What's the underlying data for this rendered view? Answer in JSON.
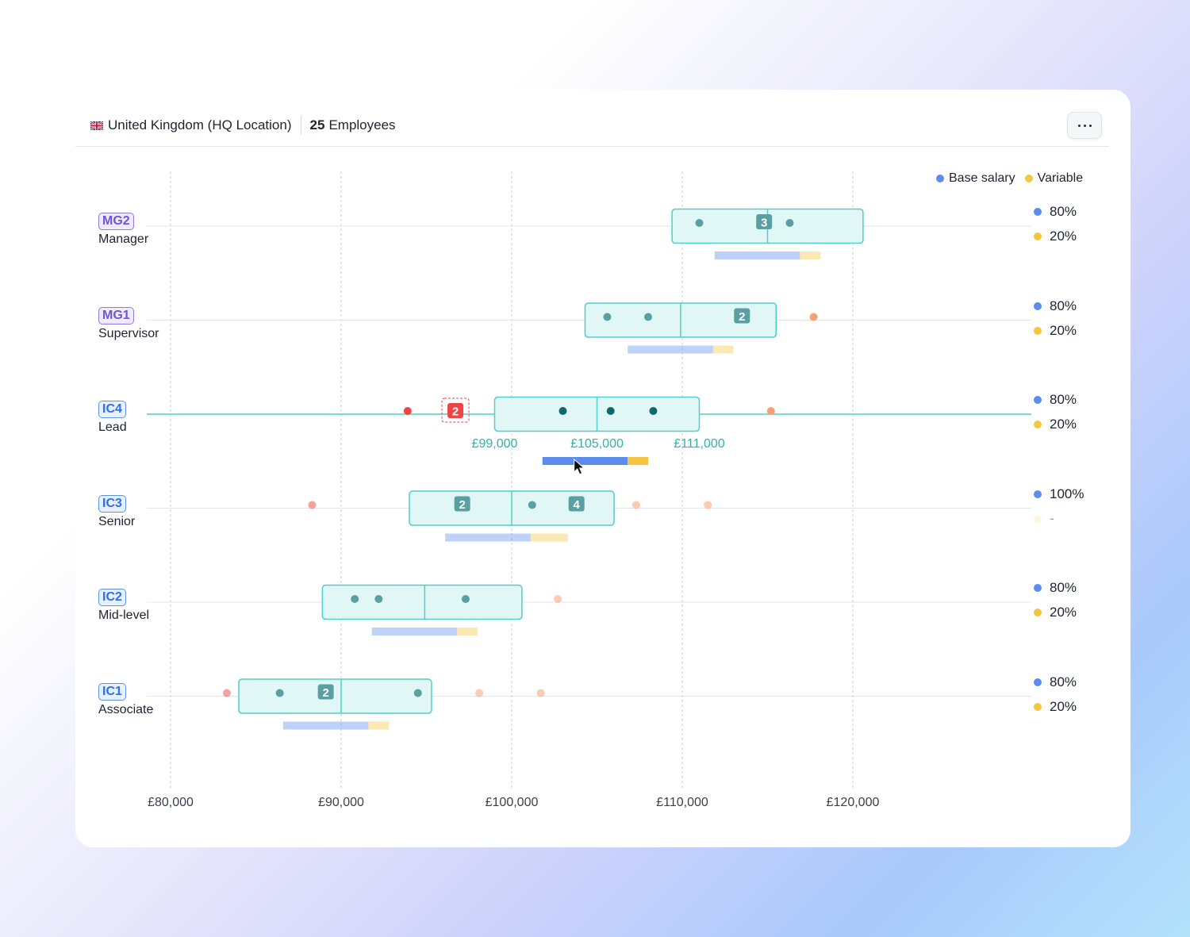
{
  "header": {
    "location": "United Kingdom (HQ Location)",
    "employee_count": "25",
    "employees_label": "Employees",
    "flag_icon": "uk-flag-icon",
    "more_icon": "more-dots-icon"
  },
  "legend": [
    {
      "label": "Base salary",
      "color": "#5b8def"
    },
    {
      "label": "Variable",
      "color": "#f5c542"
    }
  ],
  "colors": {
    "box_fill": "#e0f7f6",
    "box_stroke": "#4fcfc7",
    "dot": "#5a9fa3",
    "dot_active": "#0c6a6b",
    "outlier_red": "#ef4444",
    "outlier_orange": "#f7a172",
    "badge": "#5a9fa3",
    "base_bar": "#5b8def",
    "variable_bar": "#f5c542"
  },
  "chart_data": {
    "type": "box_range",
    "x_ticks": [
      "£80,000",
      "£90,000",
      "£100,000",
      "£110,000",
      "£120,000"
    ],
    "x_range": [
      78500,
      126000
    ],
    "bands": [
      {
        "code": "MG2",
        "name": "Manager",
        "kind": "mg",
        "min": 109400,
        "mid": 115000,
        "max": 120600,
        "dots": [
          111000,
          116300
        ],
        "badges": [
          {
            "value": 114800,
            "label": "3"
          }
        ],
        "outliers": [],
        "bar": {
          "start": 111900,
          "base_end": 116900,
          "var_end": 118100
        },
        "base_pct": "80%",
        "var_pct": "20%"
      },
      {
        "code": "MG1",
        "name": "Supervisor",
        "kind": "mg",
        "min": 104300,
        "mid": 109900,
        "max": 115500,
        "dots": [
          105600,
          108000
        ],
        "badges": [
          {
            "value": 113500,
            "label": "2"
          }
        ],
        "outliers": [
          {
            "value": 117700,
            "tone": "orange"
          }
        ],
        "bar": {
          "start": 106800,
          "base_end": 111800,
          "var_end": 113000
        },
        "base_pct": "80%",
        "var_pct": "20%"
      },
      {
        "code": "IC4",
        "name": "Lead",
        "kind": "ic",
        "active": true,
        "min": 99000,
        "mid": 105000,
        "max": 111000,
        "dots": [
          103000,
          105800,
          108300
        ],
        "badges": [],
        "flag_badge": {
          "value": 96700,
          "label": "2"
        },
        "outliers": [
          {
            "value": 93900,
            "tone": "red"
          },
          {
            "value": 115200,
            "tone": "orange"
          }
        ],
        "labels": [
          "£99,000",
          "£105,000",
          "£111,000"
        ],
        "bar": {
          "start": 101800,
          "base_end": 106800,
          "var_end": 108000
        },
        "base_pct": "80%",
        "var_pct": "20%"
      },
      {
        "code": "IC3",
        "name": "Senior",
        "kind": "ic",
        "min": 94000,
        "mid": 100000,
        "max": 106000,
        "dots": [
          101200
        ],
        "badges": [
          {
            "value": 97100,
            "label": "2"
          },
          {
            "value": 103800,
            "label": "4"
          }
        ],
        "outliers": [
          {
            "value": 88300,
            "tone": "red"
          },
          {
            "value": 107300,
            "tone": "orange"
          },
          {
            "value": 111500,
            "tone": "orange"
          }
        ],
        "bar": {
          "start": 96100,
          "base_end": 101100,
          "var_end": 103300
        },
        "base_pct": "100%",
        "var_pct": "-"
      },
      {
        "code": "IC2",
        "name": "Mid-level",
        "kind": "ic",
        "min": 88900,
        "mid": 94900,
        "max": 100600,
        "dots": [
          90800,
          92200,
          97300
        ],
        "badges": [],
        "outliers": [
          {
            "value": 102700,
            "tone": "orange"
          }
        ],
        "bar": {
          "start": 91800,
          "base_end": 96800,
          "var_end": 98000
        },
        "base_pct": "80%",
        "var_pct": "20%"
      },
      {
        "code": "IC1",
        "name": "Associate",
        "kind": "ic",
        "min": 84000,
        "mid": 90000,
        "max": 95300,
        "dots": [
          86400,
          94500
        ],
        "badges": [
          {
            "value": 89100,
            "label": "2"
          }
        ],
        "outliers": [
          {
            "value": 83300,
            "tone": "red"
          },
          {
            "value": 98100,
            "tone": "orange"
          },
          {
            "value": 101700,
            "tone": "orange"
          }
        ],
        "bar": {
          "start": 86600,
          "base_end": 91600,
          "var_end": 92800
        },
        "base_pct": "80%",
        "var_pct": "20%"
      }
    ]
  }
}
